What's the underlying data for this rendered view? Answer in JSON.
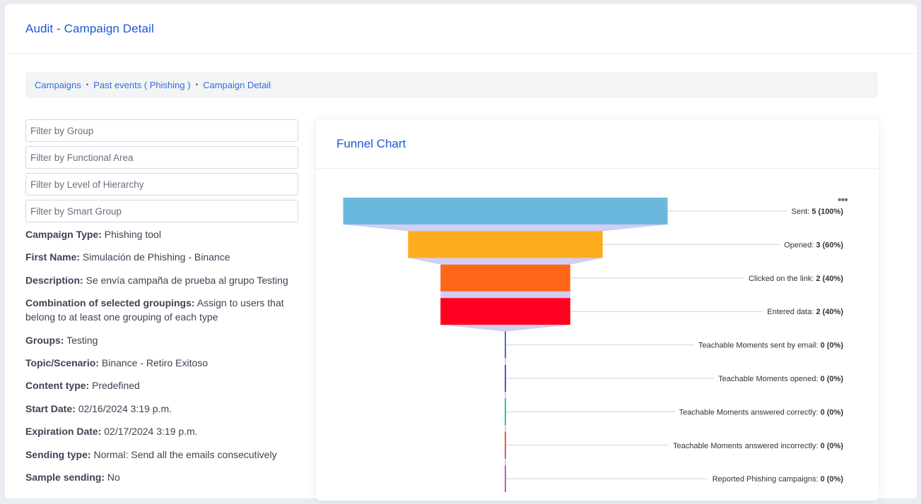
{
  "header": {
    "title": "Audit - Campaign Detail"
  },
  "breadcrumb": {
    "items": [
      "Campaigns",
      "Past events ( Phishing )",
      "Campaign Detail"
    ],
    "separator": "•"
  },
  "filters": {
    "group_placeholder": "Filter by Group",
    "functional_area_placeholder": "Filter by Functional Area",
    "hierarchy_placeholder": "Filter by Level of Hierarchy",
    "smart_group_placeholder": "Filter by Smart Group"
  },
  "details": [
    {
      "label": "Campaign Type:",
      "value": "Phishing tool"
    },
    {
      "label": "First Name:",
      "value": "Simulación de Phishing - Binance"
    },
    {
      "label": "Description:",
      "value": "Se envía campaña de prueba al grupo Testing"
    },
    {
      "label": "Combination of selected groupings:",
      "value": "Assign to users that belong to at least one grouping of each type"
    },
    {
      "label": "Groups:",
      "value": "Testing"
    },
    {
      "label": "Topic/Scenario:",
      "value": "Binance - Retiro Exitoso"
    },
    {
      "label": "Content type:",
      "value": "Predefined"
    },
    {
      "label": "Start Date:",
      "value": "02/16/2024 3:19 p.m."
    },
    {
      "label": "Expiration Date:",
      "value": "02/17/2024 3:19 p.m."
    },
    {
      "label": "Sending type:",
      "value": "Normal: Send all the emails consecutively"
    },
    {
      "label": "Sample sending:",
      "value": "No"
    }
  ],
  "chart_card": {
    "title": "Funnel Chart",
    "menu_icon": "more-horizontal-icon"
  },
  "chart_data": {
    "type": "funnel",
    "total": 5,
    "stages": [
      {
        "name": "Sent",
        "value": 5,
        "percent": "100%",
        "color": "#6bb8de"
      },
      {
        "name": "Opened",
        "value": 3,
        "percent": "60%",
        "color": "#fcac1c"
      },
      {
        "name": "Clicked on the link",
        "value": 2,
        "percent": "40%",
        "color": "#fe661a"
      },
      {
        "name": "Entered data",
        "value": 2,
        "percent": "40%",
        "color": "#ff0021"
      },
      {
        "name": "Teachable Moments sent by email",
        "value": 0,
        "percent": "0%",
        "color": "#4b6bd8"
      },
      {
        "name": "Teachable Moments opened",
        "value": 0,
        "percent": "0%",
        "color": "#7b3fd6"
      },
      {
        "name": "Teachable Moments answered correctly",
        "value": 0,
        "percent": "0%",
        "color": "#21c9a0"
      },
      {
        "name": "Teachable Moments answered incorrectly",
        "value": 0,
        "percent": "0%",
        "color": "#ef5350"
      },
      {
        "name": "Reported Phishing campaigns",
        "value": 0,
        "percent": "0%",
        "color": "#e04fc0"
      }
    ],
    "connector_color": "#c9c6f2"
  }
}
